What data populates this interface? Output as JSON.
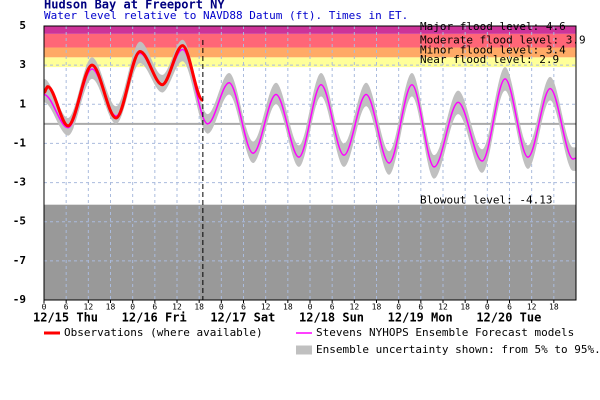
{
  "chart_data": {
    "type": "line",
    "title": "Hudson Bay at Freeport NY",
    "subtitle": "Water level relative to NAVD88 Datum (ft). Times in ET.",
    "xlim": [
      0,
      144
    ],
    "xticks": [
      0,
      6,
      12,
      18,
      {
        "value": 24,
        "label": "0"
      },
      {
        "value": 30,
        "label": "6"
      },
      {
        "value": 36,
        "label": "12"
      },
      {
        "value": 42,
        "label": "18"
      },
      {
        "value": 48,
        "label": "0"
      },
      {
        "value": 54,
        "label": "6"
      },
      {
        "value": 60,
        "label": "12"
      },
      {
        "value": 66,
        "label": "18"
      },
      {
        "value": 72,
        "label": "0"
      },
      {
        "value": 78,
        "label": "6"
      },
      {
        "value": 84,
        "label": "12"
      },
      {
        "value": 90,
        "label": "18"
      },
      {
        "value": 96,
        "label": "0"
      },
      {
        "value": 102,
        "label": "6"
      },
      {
        "value": 108,
        "label": "12"
      },
      {
        "value": 114,
        "label": "18"
      },
      {
        "value": 120,
        "label": "0"
      },
      {
        "value": 126,
        "label": "6"
      },
      {
        "value": 132,
        "label": "12"
      },
      {
        "value": 138,
        "label": "18"
      }
    ],
    "day_labels": [
      {
        "value": 0,
        "label": "12/15 Thu"
      },
      {
        "value": 24,
        "label": "12/16 Fri"
      },
      {
        "value": 48,
        "label": "12/17 Sat"
      },
      {
        "value": 72,
        "label": "12/18 Sun"
      },
      {
        "value": 96,
        "label": "12/19 Mon"
      },
      {
        "value": 120,
        "label": "12/20 Tue"
      }
    ],
    "ylim": [
      -9,
      5
    ],
    "yticks": [
      -9,
      -7,
      -5,
      -3,
      -1,
      1,
      3,
      5
    ],
    "grid": true,
    "current_time": 43,
    "flood_levels": [
      {
        "label": "Near flood level: 2.9",
        "value": 2.9,
        "color": "#ffff99"
      },
      {
        "label": "Minor flood level: 3.4",
        "value": 3.4,
        "color": "#ffaa66"
      },
      {
        "label": "Moderate flood level: 3.9",
        "value": 3.9,
        "color": "#ff6677"
      },
      {
        "label": "Major flood level: 4.6",
        "value": 4.6,
        "color": "#cc3399"
      }
    ],
    "blowout": {
      "label": "Blowout level: -4.13",
      "value": -4.13,
      "color": "#999999"
    },
    "series": [
      {
        "name": "Observations (where available)",
        "color": "#ff0000",
        "x": [
          0,
          1,
          6.5,
          13,
          19.5,
          26,
          32,
          37.5,
          43
        ],
        "values": [
          1.6,
          1.9,
          -0.1,
          3.0,
          0.3,
          3.7,
          2.0,
          4.0,
          1.2
        ]
      },
      {
        "name": "Stevens NYHOPS Ensemble Forecast models",
        "color": "#ff00ff",
        "x": [
          0,
          6.5,
          13,
          19.5,
          26,
          32,
          37.5,
          44.3,
          50.1,
          56.6,
          62.8,
          69.0,
          75.0,
          81.2,
          87.2,
          93.4,
          99.6,
          105.6,
          112.1,
          118.6,
          124.8,
          131.0,
          137.0,
          143.2,
          144
        ],
        "values": [
          1.5,
          -0.2,
          2.8,
          0.4,
          3.6,
          2.0,
          3.8,
          0.0,
          2.1,
          -1.5,
          1.5,
          -1.7,
          2.0,
          -1.6,
          1.5,
          -2.0,
          2.0,
          -2.2,
          1.1,
          -1.9,
          2.3,
          -1.7,
          1.8,
          -1.8,
          -1.75
        ]
      },
      {
        "name": "Ensemble uncertainty shown: from 5% to 95%.",
        "color": "#c0c0c0",
        "x": [
          0,
          6.5,
          13,
          19.5,
          26,
          32,
          37.5,
          44.3,
          50.1,
          56.6,
          62.8,
          69.0,
          75.0,
          81.2,
          87.2,
          93.4,
          99.6,
          105.6,
          112.1,
          118.6,
          124.8,
          131.0,
          137.0,
          143.2,
          144
        ],
        "low": [
          1.1,
          -0.6,
          2.3,
          0.0,
          3.1,
          1.6,
          3.2,
          -0.5,
          1.5,
          -2.0,
          1.0,
          -2.2,
          1.4,
          -2.2,
          0.9,
          -2.6,
          1.4,
          -2.8,
          0.5,
          -2.5,
          1.7,
          -2.3,
          1.2,
          -2.4,
          -2.4
        ],
        "high": [
          2.3,
          0.3,
          3.4,
          0.9,
          4.2,
          2.5,
          4.3,
          0.5,
          2.6,
          -0.9,
          2.1,
          -1.1,
          2.6,
          -1.0,
          2.1,
          -1.4,
          2.6,
          -1.6,
          1.7,
          -1.3,
          2.9,
          -1.1,
          2.4,
          -1.2,
          -1.2
        ]
      }
    ]
  }
}
